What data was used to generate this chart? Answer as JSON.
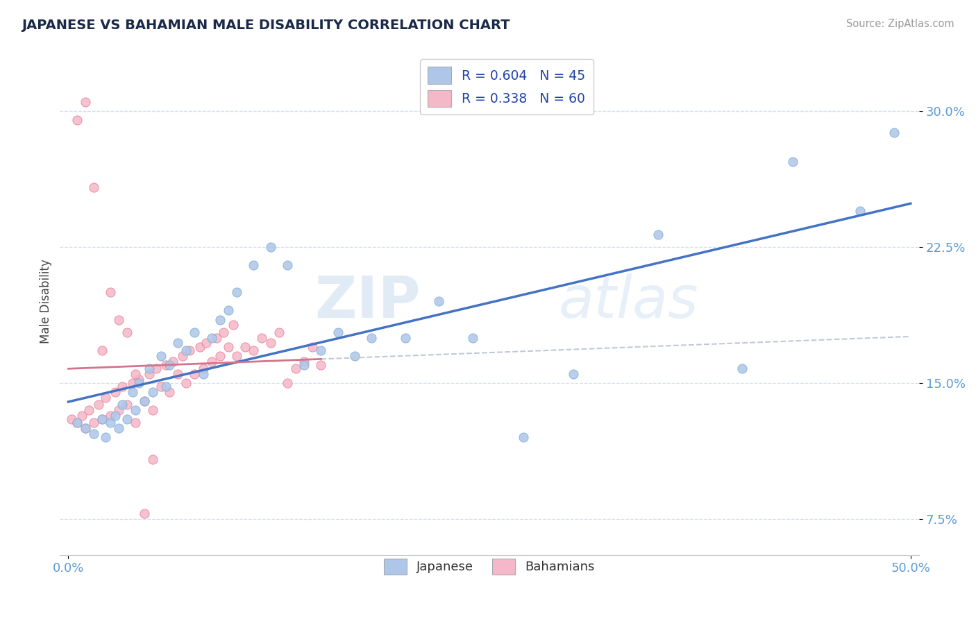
{
  "title": "JAPANESE VS BAHAMIAN MALE DISABILITY CORRELATION CHART",
  "source": "Source: ZipAtlas.com",
  "ylabel_label": "Male Disability",
  "xlim": [
    -0.005,
    0.505
  ],
  "ylim": [
    0.055,
    0.335
  ],
  "xticks": [
    0.0,
    0.5
  ],
  "xtick_labels": [
    "0.0%",
    "50.0%"
  ],
  "yticks": [
    0.075,
    0.15,
    0.225,
    0.3
  ],
  "ytick_labels": [
    "7.5%",
    "15.0%",
    "22.5%",
    "30.0%"
  ],
  "japanese_color": "#aec6e8",
  "bahamian_color": "#f5b8c8",
  "japanese_edge": "#7aafd6",
  "bahamian_edge": "#e8809a",
  "trend_japanese_color": "#4472c4",
  "trend_bahamian_color": "#d4748c",
  "r_japanese": 0.604,
  "n_japanese": 45,
  "r_bahamian": 0.338,
  "n_bahamian": 60,
  "watermark_zip": "ZIP",
  "watermark_atlas": "atlas",
  "japanese_x": [
    0.005,
    0.01,
    0.015,
    0.02,
    0.022,
    0.025,
    0.028,
    0.03,
    0.032,
    0.035,
    0.038,
    0.04,
    0.042,
    0.045,
    0.048,
    0.05,
    0.055,
    0.058,
    0.06,
    0.065,
    0.07,
    0.075,
    0.08,
    0.085,
    0.09,
    0.095,
    0.1,
    0.11,
    0.12,
    0.13,
    0.14,
    0.15,
    0.16,
    0.17,
    0.18,
    0.2,
    0.22,
    0.24,
    0.27,
    0.3,
    0.35,
    0.4,
    0.43,
    0.47,
    0.49
  ],
  "japanese_y": [
    0.128,
    0.125,
    0.122,
    0.13,
    0.12,
    0.128,
    0.132,
    0.125,
    0.138,
    0.13,
    0.145,
    0.135,
    0.15,
    0.14,
    0.158,
    0.145,
    0.165,
    0.148,
    0.16,
    0.172,
    0.168,
    0.178,
    0.155,
    0.175,
    0.185,
    0.19,
    0.2,
    0.215,
    0.225,
    0.215,
    0.16,
    0.168,
    0.178,
    0.165,
    0.175,
    0.175,
    0.195,
    0.175,
    0.12,
    0.155,
    0.232,
    0.158,
    0.272,
    0.245,
    0.288
  ],
  "bahamian_x": [
    0.002,
    0.005,
    0.008,
    0.01,
    0.012,
    0.015,
    0.018,
    0.02,
    0.022,
    0.025,
    0.028,
    0.03,
    0.032,
    0.035,
    0.038,
    0.04,
    0.042,
    0.045,
    0.048,
    0.05,
    0.052,
    0.055,
    0.058,
    0.06,
    0.062,
    0.065,
    0.068,
    0.07,
    0.072,
    0.075,
    0.078,
    0.08,
    0.082,
    0.085,
    0.088,
    0.09,
    0.092,
    0.095,
    0.098,
    0.1,
    0.105,
    0.11,
    0.115,
    0.12,
    0.125,
    0.13,
    0.135,
    0.14,
    0.145,
    0.15,
    0.005,
    0.01,
    0.015,
    0.02,
    0.025,
    0.03,
    0.035,
    0.04,
    0.045,
    0.05
  ],
  "bahamian_y": [
    0.13,
    0.128,
    0.132,
    0.125,
    0.135,
    0.128,
    0.138,
    0.13,
    0.142,
    0.132,
    0.145,
    0.135,
    0.148,
    0.138,
    0.15,
    0.128,
    0.152,
    0.14,
    0.155,
    0.135,
    0.158,
    0.148,
    0.16,
    0.145,
    0.162,
    0.155,
    0.165,
    0.15,
    0.168,
    0.155,
    0.17,
    0.158,
    0.172,
    0.162,
    0.175,
    0.165,
    0.178,
    0.17,
    0.182,
    0.165,
    0.17,
    0.168,
    0.175,
    0.172,
    0.178,
    0.15,
    0.158,
    0.162,
    0.17,
    0.16,
    0.295,
    0.305,
    0.258,
    0.168,
    0.2,
    0.185,
    0.178,
    0.155,
    0.078,
    0.108
  ],
  "grid_color": "#d0dff0",
  "tick_color": "#5b9bd5",
  "title_color": "#1a2a4a",
  "ylabel_color": "#444444",
  "source_color": "#999999"
}
